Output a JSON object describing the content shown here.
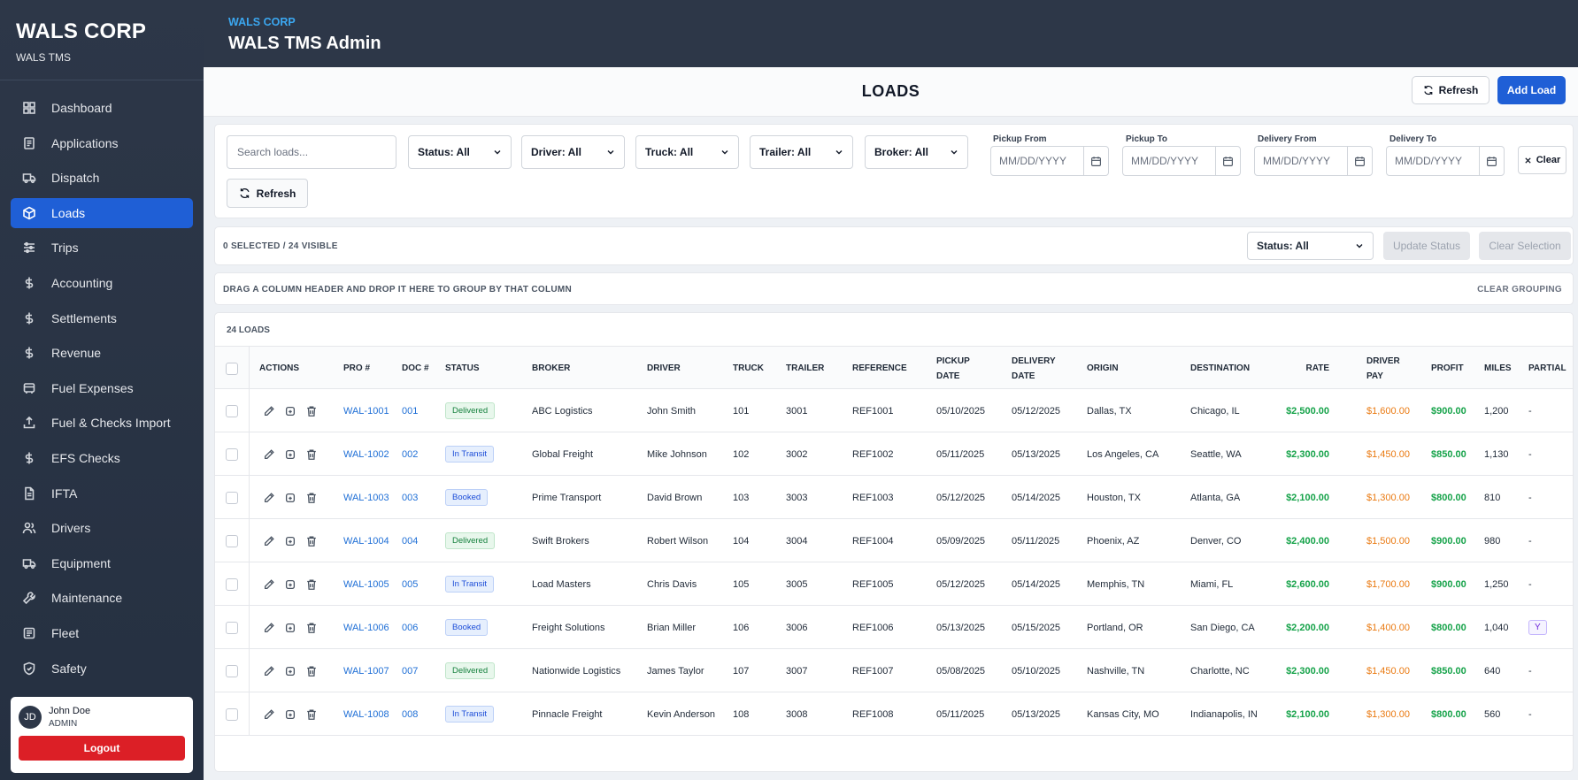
{
  "sidebar": {
    "brand_title": "WALS CORP",
    "brand_sub": "WALS TMS",
    "items": [
      {
        "label": "Dashboard",
        "icon": "dashboard-icon",
        "active": false
      },
      {
        "label": "Applications",
        "icon": "applications-icon",
        "active": false
      },
      {
        "label": "Dispatch",
        "icon": "truck-icon",
        "active": false
      },
      {
        "label": "Loads",
        "icon": "box-icon",
        "active": true
      },
      {
        "label": "Trips",
        "icon": "sliders-icon",
        "active": false
      },
      {
        "label": "Accounting",
        "icon": "dollar-icon",
        "active": false
      },
      {
        "label": "Settlements",
        "icon": "dollar-icon",
        "active": false
      },
      {
        "label": "Revenue",
        "icon": "dollar-icon",
        "active": false
      },
      {
        "label": "Fuel Expenses",
        "icon": "fuel-icon",
        "active": false
      },
      {
        "label": "Fuel & Checks Import",
        "icon": "upload-icon",
        "active": false
      },
      {
        "label": "EFS Checks",
        "icon": "dollar-icon",
        "active": false
      },
      {
        "label": "IFTA",
        "icon": "document-icon",
        "active": false
      },
      {
        "label": "Drivers",
        "icon": "users-icon",
        "active": false
      },
      {
        "label": "Equipment",
        "icon": "truck-icon",
        "active": false
      },
      {
        "label": "Maintenance",
        "icon": "wrench-icon",
        "active": false
      },
      {
        "label": "Fleet",
        "icon": "fleet-icon",
        "active": false
      },
      {
        "label": "Safety",
        "icon": "shield-icon",
        "active": false
      }
    ],
    "user": {
      "initials": "JD",
      "name": "John Doe",
      "role": "ADMIN",
      "logout_label": "Logout"
    }
  },
  "header": {
    "corp": "WALS CORP",
    "title": "WALS TMS Admin"
  },
  "titlebar": {
    "page_title": "LOADS",
    "refresh_label": "Refresh",
    "add_label": "Add Load"
  },
  "filters": {
    "search_placeholder": "Search loads...",
    "status": "Status: All",
    "driver": "Driver: All",
    "truck": "Truck: All",
    "trailer": "Trailer: All",
    "broker": "Broker: All",
    "pickup_from_label": "Pickup From",
    "pickup_to_label": "Pickup To",
    "delivery_from_label": "Delivery From",
    "delivery_to_label": "Delivery To",
    "date_placeholder": "MM/DD/YYYY",
    "clear_label": "Clear",
    "refresh_label": "Refresh"
  },
  "selection": {
    "count_text": "0 SELECTED / 24 VISIBLE",
    "status": "Status: All",
    "update_label": "Update Status",
    "clear_label": "Clear Selection"
  },
  "grouping": {
    "hint": "DRAG A COLUMN HEADER AND DROP IT HERE TO GROUP BY THAT COLUMN",
    "clear_label": "CLEAR GROUPING"
  },
  "table": {
    "count_label": "24 LOADS",
    "headers": {
      "actions": "ACTIONS",
      "pro": "PRO #",
      "doc": "DOC #",
      "status": "STATUS",
      "broker": "BROKER",
      "driver": "DRIVER",
      "truck": "TRUCK",
      "trailer": "TRAILER",
      "reference": "REFERENCE",
      "pickup_1": "PICKUP",
      "pickup_2": "DATE",
      "delivery_1": "DELIVERY",
      "delivery_2": "DATE",
      "origin": "ORIGIN",
      "destination": "DESTINATION",
      "rate": "RATE",
      "driver_pay_1": "DRIVER",
      "driver_pay_2": "PAY",
      "profit": "PROFIT",
      "miles": "MILES",
      "partial": "PARTIAL"
    },
    "rows": [
      {
        "pro": "WAL-1001",
        "doc": "001",
        "status": "Delivered",
        "status_kind": "delivered",
        "broker": "ABC Logistics",
        "driver": "John Smith",
        "truck": "101",
        "trailer": "3001",
        "reference": "REF1001",
        "pickup": "05/10/2025",
        "delivery": "05/12/2025",
        "origin": "Dallas, TX",
        "destination": "Chicago, IL",
        "rate": "$2,500.00",
        "driver_pay": "$1,600.00",
        "profit": "$900.00",
        "miles": "1,200",
        "partial": "-"
      },
      {
        "pro": "WAL-1002",
        "doc": "002",
        "status": "In Transit",
        "status_kind": "transit",
        "broker": "Global Freight",
        "driver": "Mike Johnson",
        "truck": "102",
        "trailer": "3002",
        "reference": "REF1002",
        "pickup": "05/11/2025",
        "delivery": "05/13/2025",
        "origin": "Los Angeles, CA",
        "destination": "Seattle, WA",
        "rate": "$2,300.00",
        "driver_pay": "$1,450.00",
        "profit": "$850.00",
        "miles": "1,130",
        "partial": "-"
      },
      {
        "pro": "WAL-1003",
        "doc": "003",
        "status": "Booked",
        "status_kind": "booked",
        "broker": "Prime Transport",
        "driver": "David Brown",
        "truck": "103",
        "trailer": "3003",
        "reference": "REF1003",
        "pickup": "05/12/2025",
        "delivery": "05/14/2025",
        "origin": "Houston, TX",
        "destination": "Atlanta, GA",
        "rate": "$2,100.00",
        "driver_pay": "$1,300.00",
        "profit": "$800.00",
        "miles": "810",
        "partial": "-"
      },
      {
        "pro": "WAL-1004",
        "doc": "004",
        "status": "Delivered",
        "status_kind": "delivered",
        "broker": "Swift Brokers",
        "driver": "Robert Wilson",
        "truck": "104",
        "trailer": "3004",
        "reference": "REF1004",
        "pickup": "05/09/2025",
        "delivery": "05/11/2025",
        "origin": "Phoenix, AZ",
        "destination": "Denver, CO",
        "rate": "$2,400.00",
        "driver_pay": "$1,500.00",
        "profit": "$900.00",
        "miles": "980",
        "partial": "-"
      },
      {
        "pro": "WAL-1005",
        "doc": "005",
        "status": "In Transit",
        "status_kind": "transit",
        "broker": "Load Masters",
        "driver": "Chris Davis",
        "truck": "105",
        "trailer": "3005",
        "reference": "REF1005",
        "pickup": "05/12/2025",
        "delivery": "05/14/2025",
        "origin": "Memphis, TN",
        "destination": "Miami, FL",
        "rate": "$2,600.00",
        "driver_pay": "$1,700.00",
        "profit": "$900.00",
        "miles": "1,250",
        "partial": "-"
      },
      {
        "pro": "WAL-1006",
        "doc": "006",
        "status": "Booked",
        "status_kind": "booked",
        "broker": "Freight Solutions",
        "driver": "Brian Miller",
        "truck": "106",
        "trailer": "3006",
        "reference": "REF1006",
        "pickup": "05/13/2025",
        "delivery": "05/15/2025",
        "origin": "Portland, OR",
        "destination": "San Diego, CA",
        "rate": "$2,200.00",
        "driver_pay": "$1,400.00",
        "profit": "$800.00",
        "miles": "1,040",
        "partial": "Y"
      },
      {
        "pro": "WAL-1007",
        "doc": "007",
        "status": "Delivered",
        "status_kind": "delivered",
        "broker": "Nationwide Logistics",
        "driver": "James Taylor",
        "truck": "107",
        "trailer": "3007",
        "reference": "REF1007",
        "pickup": "05/08/2025",
        "delivery": "05/10/2025",
        "origin": "Nashville, TN",
        "destination": "Charlotte, NC",
        "rate": "$2,300.00",
        "driver_pay": "$1,450.00",
        "profit": "$850.00",
        "miles": "640",
        "partial": "-"
      },
      {
        "pro": "WAL-1008",
        "doc": "008",
        "status": "In Transit",
        "status_kind": "transit",
        "broker": "Pinnacle Freight",
        "driver": "Kevin Anderson",
        "truck": "108",
        "trailer": "3008",
        "reference": "REF1008",
        "pickup": "05/11/2025",
        "delivery": "05/13/2025",
        "origin": "Kansas City, MO",
        "destination": "Indianapolis, IN",
        "rate": "$2,100.00",
        "driver_pay": "$1,300.00",
        "profit": "$800.00",
        "miles": "560",
        "partial": "-"
      }
    ]
  },
  "colors": {
    "sidebar_bg": "#2d3748",
    "accent": "#1f5fd6",
    "logout": "#dc1f26",
    "money_green": "#16a34a",
    "pay_orange": "#ea7a12"
  }
}
